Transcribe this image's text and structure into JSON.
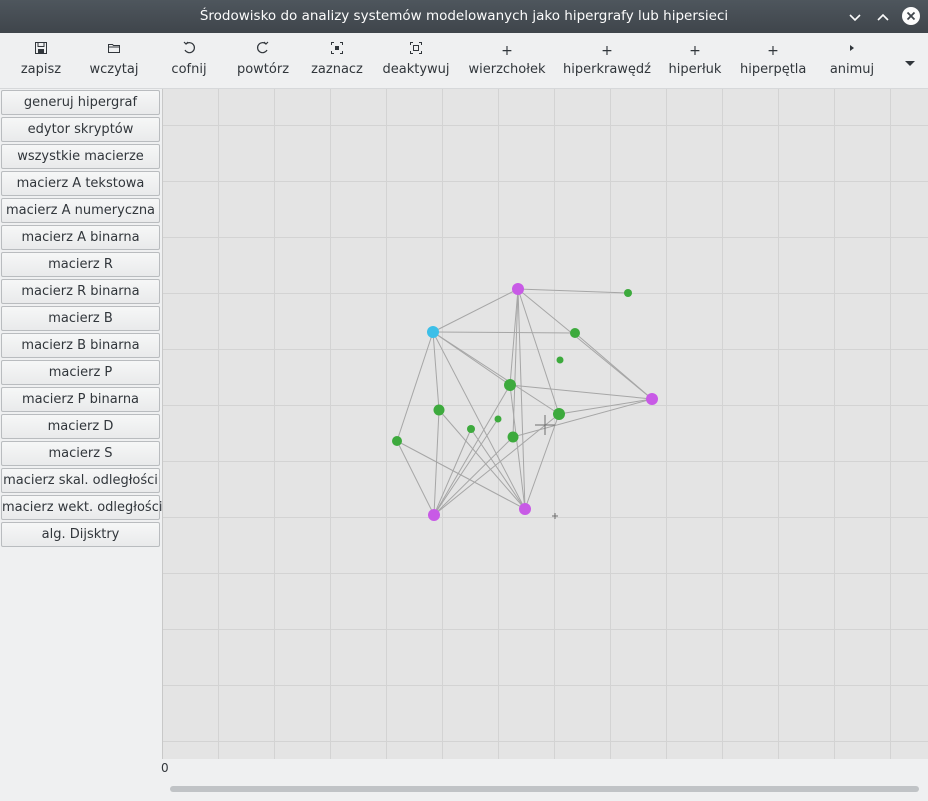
{
  "window": {
    "title": "Środowisko do analizy systemów modelowanych jako hipergrafy lub hipersieci",
    "minimize_icon": "chevron-down-icon",
    "maximize_icon": "chevron-up-icon",
    "close_icon": "close-icon"
  },
  "toolbar": {
    "items": [
      {
        "label": "zapisz",
        "icon": "save-icon"
      },
      {
        "label": "wczytaj",
        "icon": "folder-icon"
      },
      {
        "label": "cofnij",
        "icon": "undo-icon"
      },
      {
        "label": "powtórz",
        "icon": "redo-icon"
      },
      {
        "label": "zaznacz",
        "icon": "select-icon"
      },
      {
        "label": "deaktywuj",
        "icon": "deselect-icon"
      },
      {
        "label": "wierzchołek",
        "icon": "plus-icon"
      },
      {
        "label": "hiperkrawędź",
        "icon": "plus-icon"
      },
      {
        "label": "hiperłuk",
        "icon": "plus-icon"
      },
      {
        "label": "hiperpętla",
        "icon": "plus-icon"
      },
      {
        "label": "animuj",
        "icon": "play-icon"
      }
    ],
    "overflow_icon": "arrow-down-icon"
  },
  "sidebar": {
    "buttons": [
      "generuj hipergraf",
      "edytor skryptów",
      "wszystkie macierze",
      "macierz A tekstowa",
      "macierz A numeryczna",
      "macierz A binarna",
      "macierz R",
      "macierz R binarna",
      "macierz B",
      "macierz B binarna",
      "macierz P",
      "macierz P binarna",
      "macierz D",
      "macierz S",
      "macierz skal. odległości",
      "macierz wekt. odległości",
      "alg. Dijsktry"
    ]
  },
  "canvas": {
    "scroll_value": "0",
    "colors": {
      "background": "#e4e4e4",
      "grid": "#d3d3d3",
      "edge": "#a6a6a6",
      "vertex": "#3daa3d",
      "hyperedge": "#c85ae6",
      "selected": "#3cbfe8"
    }
  }
}
